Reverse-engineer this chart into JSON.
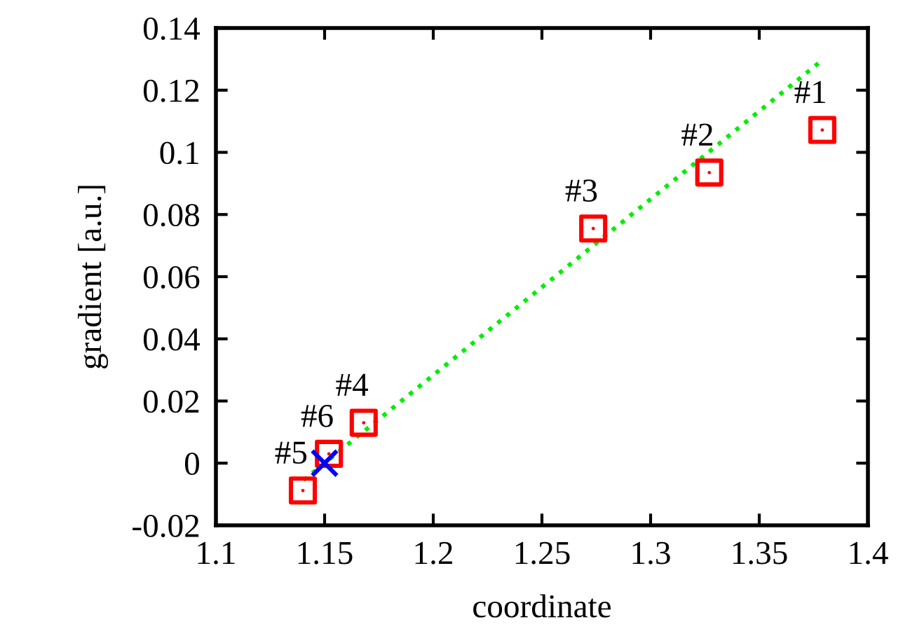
{
  "chart_data": {
    "type": "scatter",
    "xlabel": "coordinate",
    "ylabel": "gradient [a.u.]",
    "series": [
      {
        "color": "#ff0000",
        "marker": "square",
        "x": [
          1.379,
          1.327,
          1.2736,
          1.168,
          1.14,
          1.152
        ],
        "values": [
          0.1072,
          0.0935,
          0.0755,
          0.013,
          -0.0088,
          0.003
        ]
      },
      {
        "color": "#0000ff",
        "marker": "cross",
        "x": [
          1.15
        ],
        "values": [
          0
        ]
      },
      {
        "type": "line",
        "color": "#00ee00",
        "marker": "none",
        "line_style": "dotted",
        "x": [
          1.1403,
          1.3787
        ],
        "values": [
          -0.0055,
          0.1295
        ]
      }
    ],
    "annotations": [
      {
        "text": "#1",
        "x": 1.379,
        "y": 0.1072
      },
      {
        "text": "#2",
        "x": 1.327,
        "y": 0.0935
      },
      {
        "text": "#3",
        "x": 1.2736,
        "y": 0.0755
      },
      {
        "text": "#4",
        "x": 1.168,
        "y": 0.013
      },
      {
        "text": "#5",
        "x": 1.14,
        "y": -0.0088
      },
      {
        "text": "#6",
        "x": 1.152,
        "y": 0.003
      }
    ],
    "xlim": [
      1.1,
      1.4
    ],
    "xticks": [
      1.1,
      1.15,
      1.2,
      1.25,
      1.3,
      1.35,
      1.4
    ],
    "ylim": [
      -0.02,
      0.14
    ],
    "yticks": [
      -0.02,
      0,
      0.02,
      0.04,
      0.06,
      0.08,
      0.1,
      0.12,
      0.14
    ],
    "grid": false
  }
}
